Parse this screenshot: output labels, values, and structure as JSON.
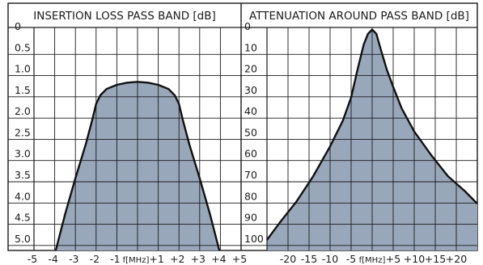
{
  "chart_data": [
    {
      "type": "area",
      "title": "INSERTION LOSS PASS BAND [dB]",
      "x_tick_labels": [
        "-5",
        "-4",
        "-3",
        "-2",
        "-1",
        "f[MHz]",
        "+1",
        "+2",
        "+3",
        "+4",
        "+5"
      ],
      "y_tick_labels": [
        "0",
        "0.5",
        "1.0",
        "1.5",
        "2.0",
        "2.5",
        "3.0",
        "3.5",
        "4.0",
        "4.5",
        "5.0"
      ],
      "xlim": [
        -5,
        5
      ],
      "ylim": [
        0,
        5.25
      ],
      "y_inverted": true,
      "grid": true,
      "fill_color": "#98a7ba",
      "line_color": "#111111",
      "x": [
        -3.95,
        -3.5,
        -3.0,
        -2.5,
        -2.2,
        -2.0,
        -1.8,
        -1.5,
        -1.0,
        -0.5,
        0,
        0.5,
        1.0,
        1.5,
        1.8,
        2.0,
        2.2,
        2.5,
        3.0,
        3.5,
        3.95
      ],
      "y": [
        5.25,
        4.4,
        3.55,
        2.75,
        2.2,
        1.8,
        1.6,
        1.45,
        1.35,
        1.3,
        1.28,
        1.3,
        1.35,
        1.45,
        1.6,
        1.8,
        2.2,
        2.75,
        3.55,
        4.4,
        5.25
      ]
    },
    {
      "type": "area",
      "title": "ATTENUATION AROUND PASS BAND [dB]",
      "x_tick_labels": [
        "-20",
        "-15",
        "-10",
        "-5",
        "f[MHz]",
        "+5",
        "+10",
        "+15",
        "+20"
      ],
      "y_tick_labels": [
        "0",
        "10",
        "20",
        "30",
        "40",
        "50",
        "60",
        "70",
        "80",
        "90",
        "100"
      ],
      "xlim": [
        -25,
        25
      ],
      "ylim": [
        0,
        105
      ],
      "y_inverted": true,
      "grid": true,
      "fill_color": "#98a7ba",
      "line_color": "#111111",
      "x": [
        -25,
        -22,
        -18,
        -14,
        -10,
        -7,
        -5,
        -3.5,
        -2,
        -1,
        0,
        1,
        2,
        3.5,
        5,
        7,
        10,
        14,
        18,
        22,
        25
      ],
      "y": [
        100,
        92,
        82,
        70,
        56,
        44,
        33,
        20,
        8,
        3,
        1,
        3,
        10,
        20,
        28,
        38,
        49,
        60,
        70,
        77,
        83
      ]
    }
  ]
}
